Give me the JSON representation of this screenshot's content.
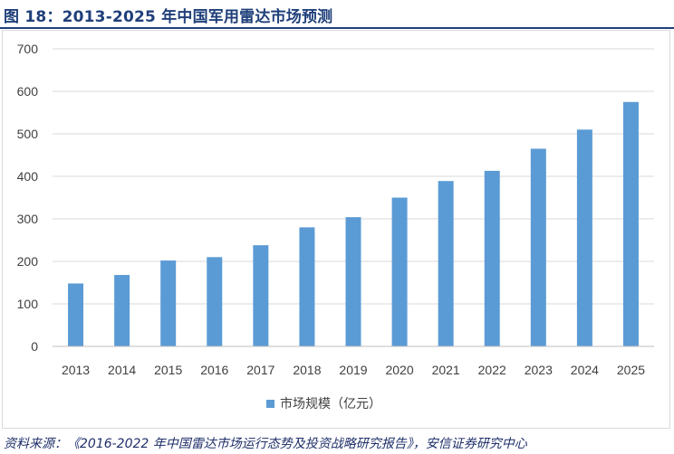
{
  "figure": {
    "title": "图 18：2013-2025 年中国军用雷达市场预测",
    "source": "资料来源：《2016-2022 年中国雷达市场运行态势及投资战略研究报告》，安信证券研究中心"
  },
  "chart_data": {
    "type": "bar",
    "title": "",
    "xlabel": "",
    "ylabel": "",
    "categories": [
      "2013",
      "2014",
      "2015",
      "2016",
      "2017",
      "2018",
      "2019",
      "2020",
      "2021",
      "2022",
      "2023",
      "2024",
      "2025"
    ],
    "series": [
      {
        "name": "市场规模（亿元）",
        "color": "#5b9bd5",
        "values": [
          148,
          168,
          202,
          210,
          238,
          280,
          304,
          350,
          389,
          413,
          465,
          510,
          575
        ]
      }
    ],
    "ylim": [
      0,
      700
    ],
    "yticks": [
      "0",
      "100",
      "200",
      "300",
      "400",
      "500",
      "600",
      "700"
    ],
    "grid": true,
    "legend_position": "bottom-center"
  }
}
